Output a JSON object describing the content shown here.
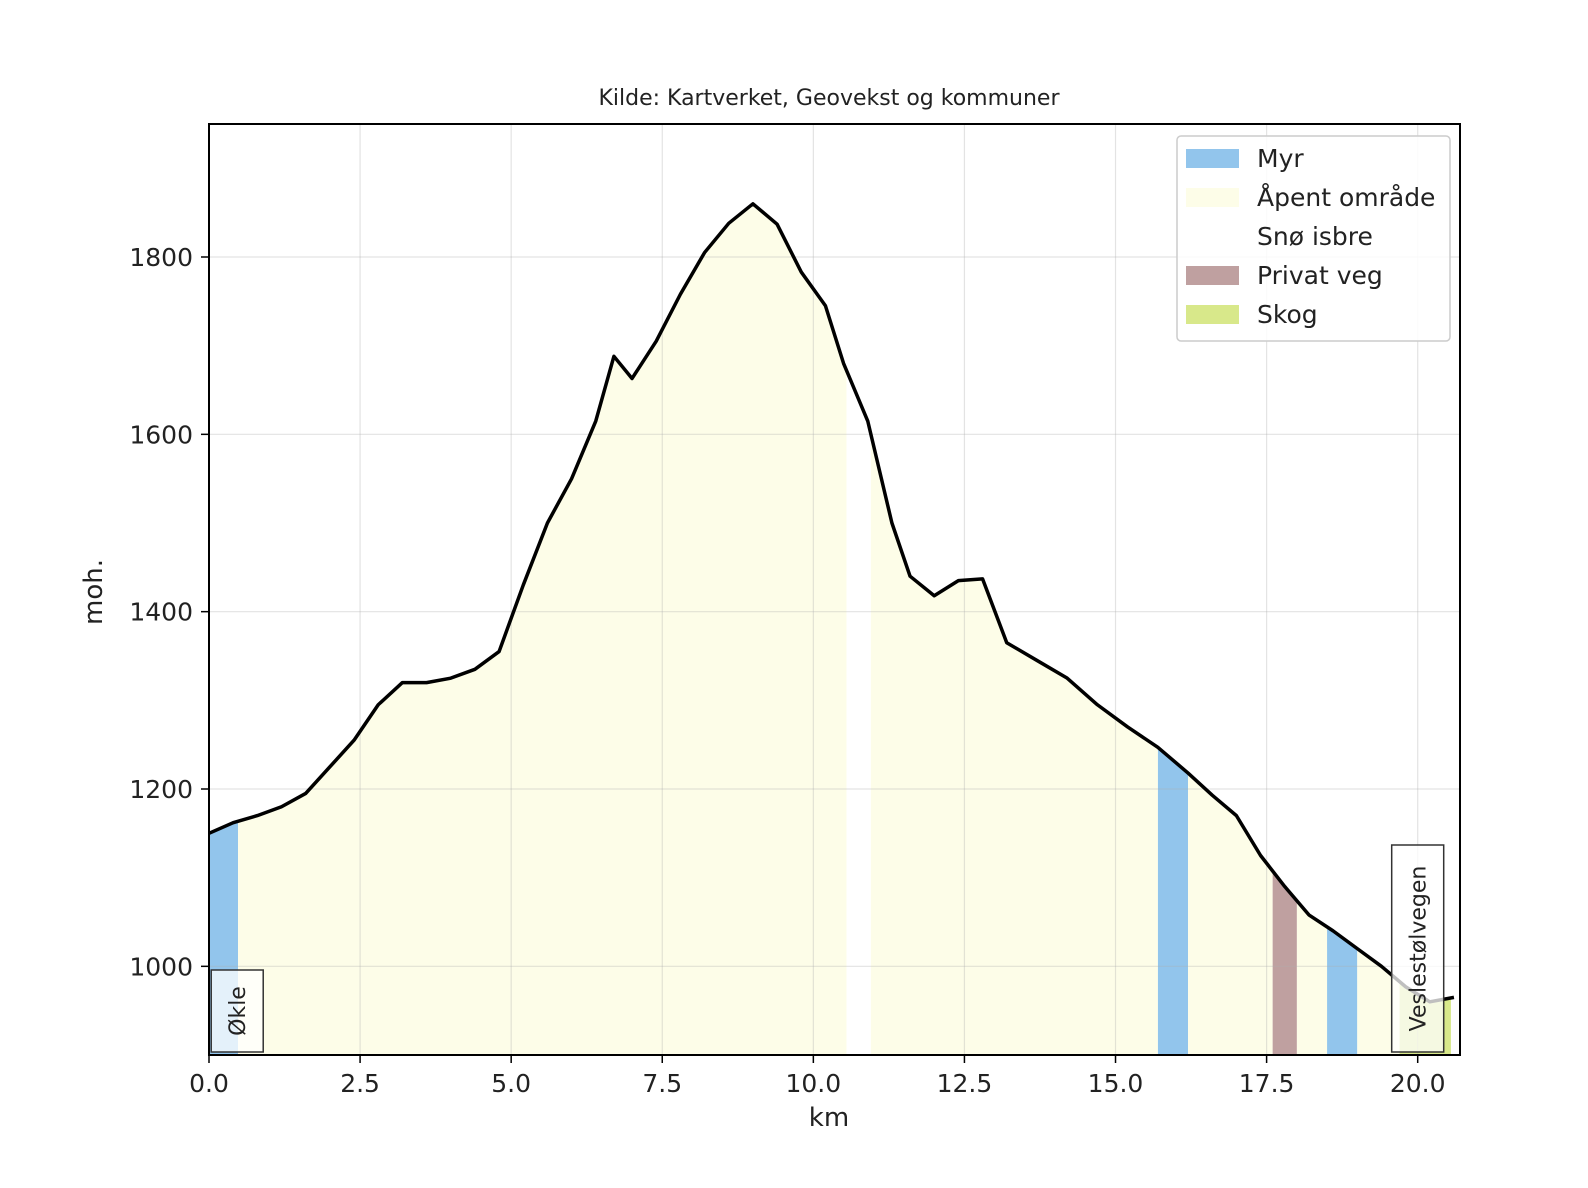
{
  "chart_data": {
    "type": "area",
    "title": "Kilde: Kartverket, Geovekst og kommuner",
    "xlabel": "km",
    "ylabel": "moh.",
    "xlim": [
      0,
      20.7
    ],
    "ylim": [
      900,
      1950
    ],
    "xticks": [
      "0.0",
      "2.5",
      "5.0",
      "7.5",
      "10.0",
      "12.5",
      "15.0",
      "17.5",
      "20.0"
    ],
    "xtick_values": [
      0,
      2.5,
      5,
      7.5,
      10,
      12.5,
      15,
      17.5,
      20
    ],
    "yticks": [
      "1000",
      "1200",
      "1400",
      "1600",
      "1800"
    ],
    "ytick_values": [
      1000,
      1200,
      1400,
      1600,
      1800
    ],
    "grid": true,
    "legend_position": "top-right",
    "profile": {
      "color": "#000000",
      "x": [
        0,
        0.4,
        0.8,
        1.2,
        1.6,
        2.0,
        2.4,
        2.8,
        3.2,
        3.6,
        4.0,
        4.4,
        4.8,
        5.2,
        5.6,
        6.0,
        6.4,
        6.7,
        7.0,
        7.4,
        7.8,
        8.2,
        8.6,
        9.0,
        9.4,
        9.8,
        10.2,
        10.5,
        10.9,
        11.3,
        11.6,
        12.0,
        12.4,
        12.8,
        13.2,
        13.7,
        14.2,
        14.7,
        15.2,
        15.7,
        16.2,
        16.6,
        17.0,
        17.4,
        17.8,
        18.2,
        18.6,
        19.0,
        19.4,
        19.8,
        20.2,
        20.6
      ],
      "y": [
        1150,
        1162,
        1170,
        1180,
        1195,
        1225,
        1255,
        1295,
        1320,
        1320,
        1325,
        1335,
        1355,
        1430,
        1500,
        1550,
        1615,
        1688,
        1663,
        1705,
        1758,
        1805,
        1838,
        1860,
        1837,
        1783,
        1745,
        1680,
        1615,
        1500,
        1440,
        1418,
        1435,
        1437,
        1365,
        1345,
        1325,
        1295,
        1270,
        1247,
        1218,
        1193,
        1170,
        1125,
        1090,
        1058,
        1040,
        1020,
        1000,
        977,
        960,
        965
      ]
    },
    "series": [
      {
        "name": "Myr",
        "color": "#92c5ec",
        "spans": [
          [
            0,
            0.48
          ],
          [
            15.7,
            16.2
          ],
          [
            18.5,
            19.0
          ]
        ]
      },
      {
        "name": "Åpent område",
        "color": "#fdfde8",
        "spans": [
          [
            0.48,
            10.55
          ],
          [
            10.95,
            15.7
          ],
          [
            16.2,
            17.6
          ],
          [
            18.0,
            18.5
          ],
          [
            19.0,
            19.7
          ]
        ]
      },
      {
        "name": "Snø isbre",
        "color": "#ffffff",
        "spans": [
          [
            10.55,
            10.95
          ]
        ]
      },
      {
        "name": "Privat veg",
        "color": "#bfa0a0",
        "spans": [
          [
            17.6,
            18.0
          ]
        ]
      },
      {
        "name": "Skog",
        "color": "#d8e88a",
        "spans": [
          [
            19.7,
            20.55
          ]
        ]
      }
    ],
    "annotations": [
      {
        "text": "Økle",
        "x": 0.5
      },
      {
        "text": "Veslestølvegen",
        "x": 20.0
      }
    ]
  }
}
